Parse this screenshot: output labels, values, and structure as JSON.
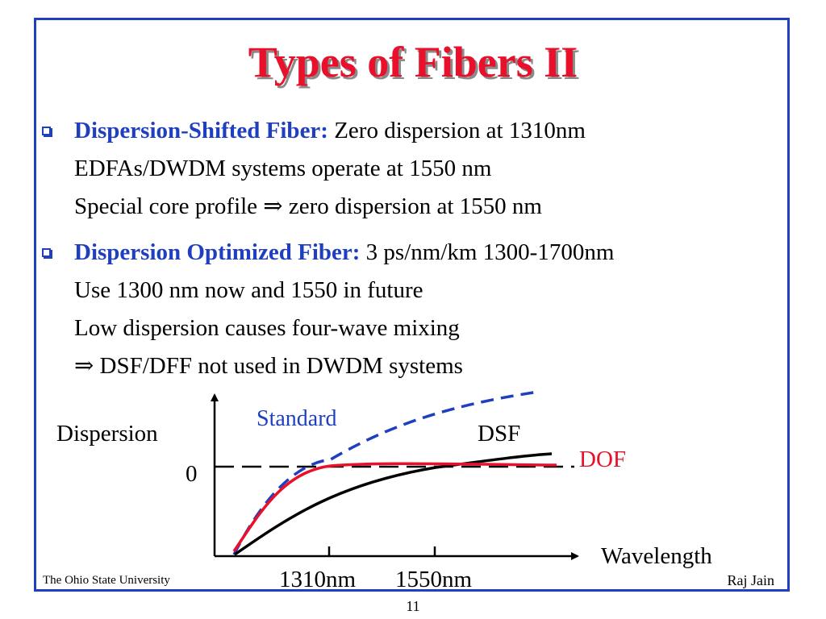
{
  "slide": {
    "title": "Types of Fibers II",
    "footer_left": "The Ohio State University",
    "footer_right": "Raj Jain",
    "page_number": "11"
  },
  "bullets": [
    {
      "term": "Dispersion-Shifted Fiber:",
      "first_text": " Zero dispersion at 1310nm",
      "lines": [
        "EDFAs/DWDM systems operate at 1550 nm",
        "Special core profile ⇒ zero dispersion at 1550 nm"
      ]
    },
    {
      "term": "Dispersion Optimized Fiber:",
      "first_text": " 3 ps/nm/km 1300-1700nm",
      "lines": [
        "Use 1300 nm now and 1550 in future",
        "Low dispersion causes four-wave mixing",
        "⇒ DSF/DFF not used in DWDM systems"
      ]
    }
  ],
  "diagram": {
    "y_label": "Dispersion",
    "zero_label": "0",
    "x_label": "Wavelength",
    "tick_1310": "1310nm",
    "tick_1550": "1550nm",
    "curves": {
      "standard": {
        "label": "Standard",
        "color": "#1f3fbf"
      },
      "dsf": {
        "label": "DSF",
        "color": "#000000"
      },
      "dof": {
        "label": "DOF",
        "color": "#e8102a"
      }
    }
  }
}
